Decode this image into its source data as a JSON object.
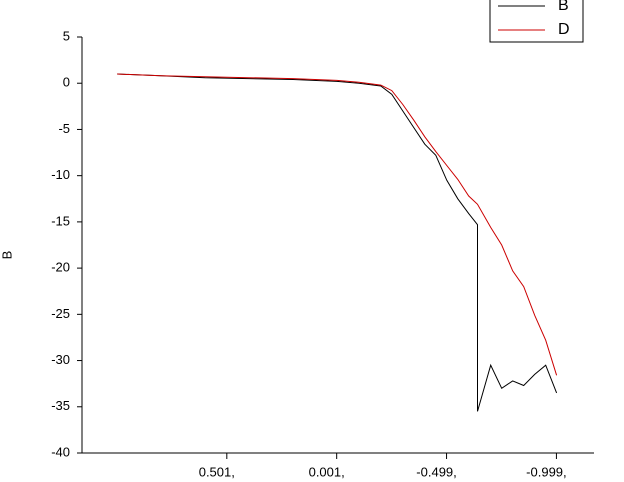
{
  "chart_data": {
    "type": "line",
    "y_label": "B",
    "x": [
      1.0,
      0.8,
      0.6,
      0.4,
      0.2,
      0.0,
      -0.1,
      -0.2,
      -0.25,
      -0.3,
      -0.35,
      -0.4,
      -0.45,
      -0.5,
      -0.55,
      -0.6,
      -0.64,
      -0.64,
      -0.7,
      -0.75,
      -0.8,
      -0.85,
      -0.9,
      -0.95,
      -1.0
    ],
    "series": [
      {
        "name": "B",
        "color": "#000000",
        "values": [
          1.0,
          0.8,
          0.6,
          0.5,
          0.4,
          0.2,
          0.0,
          -0.3,
          -1.2,
          -3.0,
          -4.8,
          -6.6,
          -7.8,
          -10.5,
          -12.5,
          -14.1,
          -15.3,
          -35.5,
          -30.5,
          -33.0,
          -32.2,
          -32.7,
          -31.5,
          -30.5,
          -33.5
        ]
      },
      {
        "name": "D",
        "color": "#cc0000",
        "values": [
          1.0,
          0.8,
          0.7,
          0.6,
          0.5,
          0.3,
          0.1,
          -0.2,
          -0.8,
          -2.3,
          -4.0,
          -5.8,
          -7.4,
          -8.9,
          -10.4,
          -12.2,
          -13.1,
          -13.1,
          -15.6,
          -17.5,
          -20.3,
          -22.0,
          -25.1,
          -27.8,
          -31.6
        ]
      }
    ],
    "xlim": [
      1.16,
      -1.17
    ],
    "xticks": [
      {
        "value": 0.501,
        "label": "0.501,"
      },
      {
        "value": 0.001,
        "label": "0.001,"
      },
      {
        "value": -0.499,
        "label": "-0.499,"
      },
      {
        "value": -0.999,
        "label": "-0.999,"
      }
    ],
    "ylim": [
      -40,
      5
    ],
    "yticks": [
      5,
      0,
      -5,
      -10,
      -15,
      -20,
      -25,
      -30,
      -35,
      -40
    ],
    "legend": "top-right"
  }
}
